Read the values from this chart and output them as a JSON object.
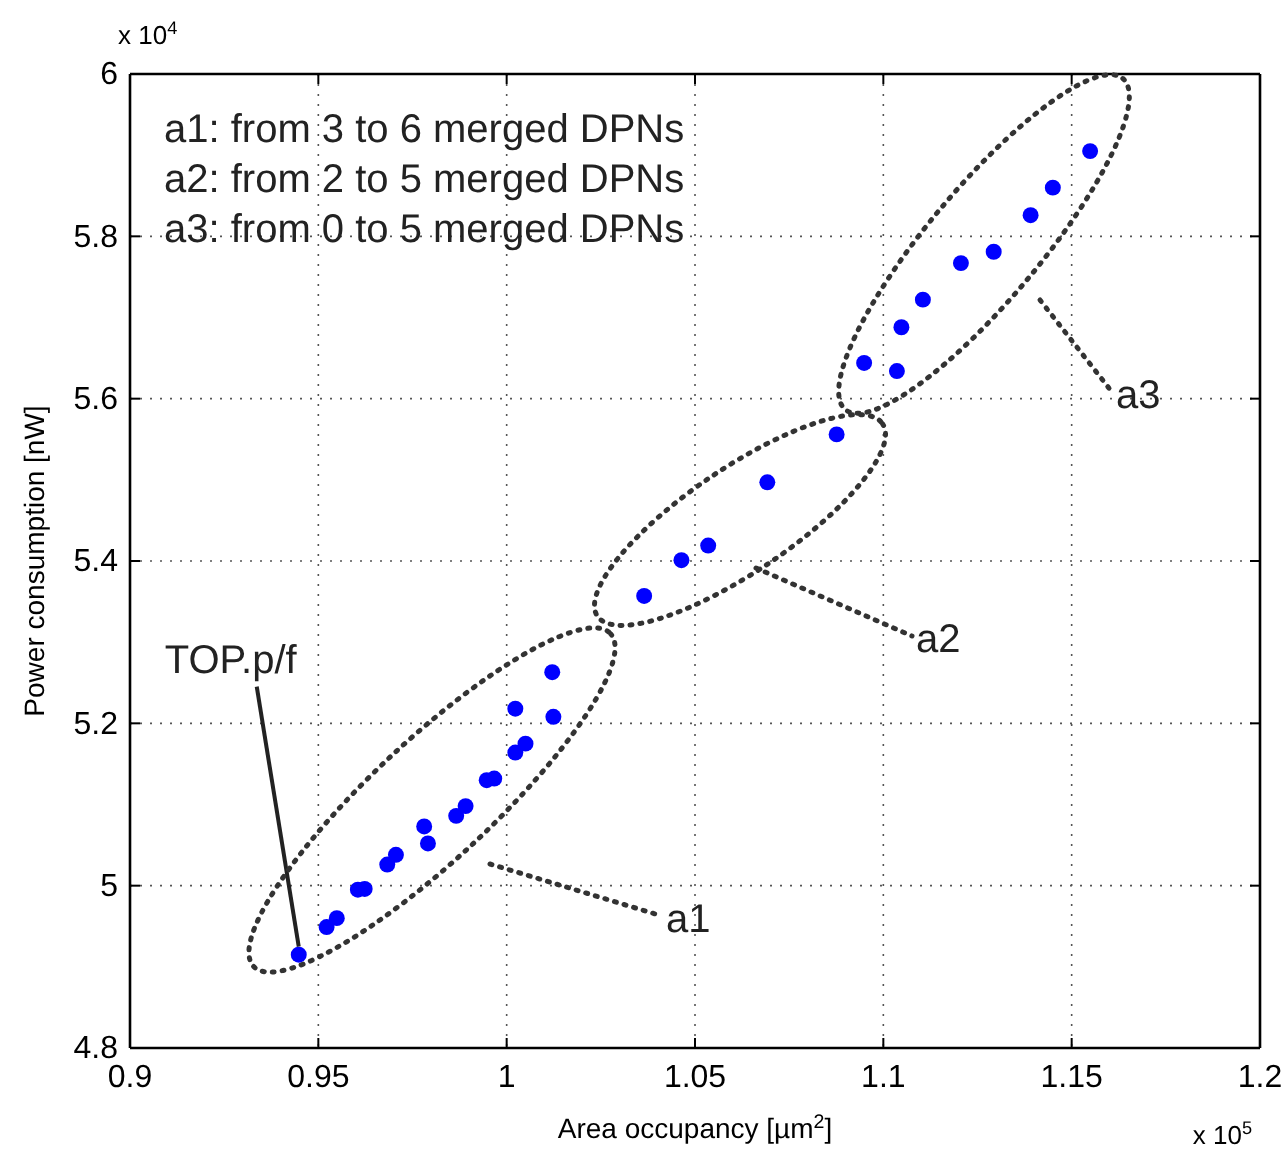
{
  "chart_data": {
    "type": "scatter",
    "xlabel": "Area occupancy [µm$^{2}$]",
    "ylabel": "Power consumption [nW]",
    "x": [
      0.9448,
      0.9522,
      0.9549,
      0.9605,
      0.9623,
      0.9683,
      0.9706,
      0.9781,
      0.9791,
      0.9866,
      0.9891,
      0.9947,
      0.9967,
      1.0023,
      1.005,
      1.0023,
      1.0124,
      1.0121,
      1.0365,
      1.0464,
      1.0535,
      1.0692,
      1.0876,
      1.0949,
      1.1036,
      1.1048,
      1.1105,
      1.1206,
      1.1293,
      1.1391,
      1.145,
      1.1549
    ],
    "series": [
      {
        "color": "#0000ff",
        "values": [
          4.915,
          4.949,
          4.96,
          4.995,
          4.996,
          5.026,
          5.038,
          5.073,
          5.052,
          5.086,
          5.098,
          5.13,
          5.132,
          5.164,
          5.175,
          5.218,
          5.208,
          5.263,
          5.357,
          5.401,
          5.419,
          5.497,
          5.556,
          5.644,
          5.634,
          5.688,
          5.722,
          5.767,
          5.781,
          5.826,
          5.86,
          5.905
        ]
      }
    ],
    "xlim": [
      0.9,
      1.2
    ],
    "xticks": [
      0.9,
      0.95,
      1,
      1.05,
      1.1,
      1.15,
      1.2
    ],
    "ylim": [
      4.8,
      6
    ],
    "yticks": [
      4.8,
      5,
      5.2,
      5.4,
      5.6,
      5.8,
      6
    ],
    "grid": true,
    "marker": "circle",
    "annotations": [
      "x 10$^{4}$",
      "x 10$^{5}$",
      "a1: from 3 to 6 merged DPNs",
      "a2: from 2 to 5 merged DPNs",
      "a3: from 0 to 5 merged DPNs",
      {
        "text": "TOP.p/f",
        "x": 0.9448,
        "y": 4.915
      },
      "a1",
      "a2",
      "a3"
    ]
  }
}
